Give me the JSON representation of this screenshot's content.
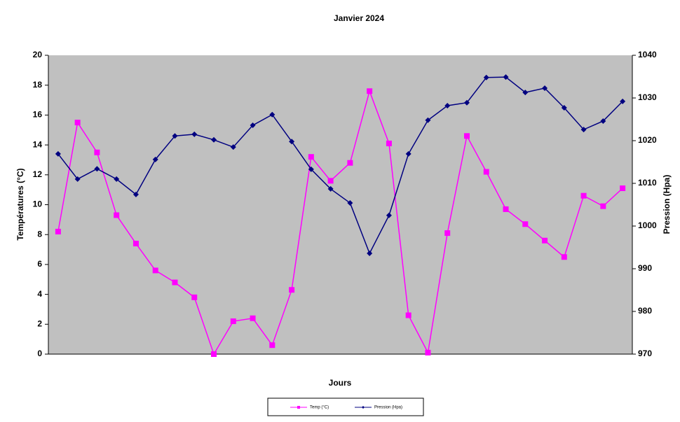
{
  "chart_data": {
    "type": "line",
    "title": "Janvier 2024",
    "x_label": "Jours",
    "y_label": "Températures (°C)",
    "y2_label": "Pression (Hpa)",
    "categories": [
      null,
      null,
      null,
      null,
      null,
      null,
      null,
      null,
      null,
      null,
      null,
      null,
      null,
      null,
      null,
      null,
      null,
      null,
      null,
      null,
      null,
      null,
      null,
      null,
      null,
      null,
      null,
      null,
      null,
      null
    ],
    "series": [
      {
        "name": "Temp (°C)",
        "color": "#ff00ff",
        "marker": "square",
        "values": [
          8.2,
          15.5,
          13.5,
          9.3,
          7.4,
          5.6,
          4.8,
          3.8,
          0,
          2.2,
          2.4,
          0.6,
          4.3,
          13.2,
          11.6,
          12.8,
          17.6,
          14.1,
          2.6,
          0.1,
          8.1,
          14.6,
          12.2,
          9.7,
          8.7,
          7.6,
          6.5,
          10.6,
          9.9,
          11.1
        ]
      },
      {
        "name": "Pression (Hpa)",
        "color": "#000080",
        "marker": "diamond",
        "axis": "y2",
        "values": [
          1016.9,
          1011.0,
          1013.4,
          1011.0,
          1007.4,
          1015.6,
          1021.1,
          1021.5,
          1020.2,
          1018.5,
          1023.6,
          1026.1,
          1019.8,
          1013.3,
          1008.7,
          1005.4,
          993.6,
          1002.5,
          1016.9,
          1024.8,
          1028.2,
          1028.9,
          1034.8,
          1034.9,
          1031.3,
          1032.3,
          1027.7,
          1022.6,
          1024.6,
          1029.2
        ]
      }
    ],
    "ylim": [
      0,
      20
    ],
    "yticks": [
      0,
      2,
      4,
      6,
      8,
      10,
      12,
      14,
      16,
      18,
      20
    ],
    "y2lim": [
      970,
      1040
    ],
    "y2ticks": [
      970,
      980,
      990,
      1000,
      1010,
      1020,
      1030,
      1040
    ],
    "plot_background": "#c0c0c0",
    "legend": "bottom"
  }
}
